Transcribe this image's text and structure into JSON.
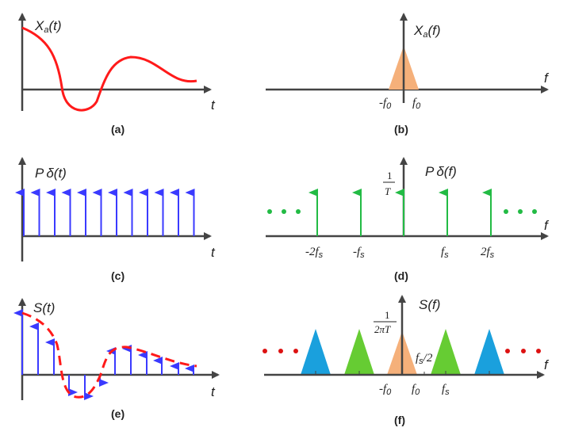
{
  "panels": {
    "a": {
      "caption": "(a)",
      "ylabel": "X",
      "ylabel_sub": "a",
      "ylabel_arg": "(t)",
      "xlabel": "t"
    },
    "b": {
      "caption": "(b)",
      "ylabel": "X",
      "ylabel_sub": "a",
      "ylabel_arg": "(f)",
      "xlabel": "f",
      "ticks": [
        "-f",
        "f"
      ],
      "tick_sub": "0"
    },
    "c": {
      "caption": "(c)",
      "ylabel": "P",
      "ylabel_sub": "δ",
      "ylabel_arg": "(t)",
      "xlabel": "t"
    },
    "d": {
      "caption": "(d)",
      "ylabel": "P",
      "ylabel_sub": "δ",
      "ylabel_arg": "(f)",
      "xlabel": "f",
      "amp_num": "1",
      "amp_den": "T",
      "ticks": [
        "-2f",
        "-f",
        "f",
        "2f"
      ],
      "tick_sub": "s"
    },
    "e": {
      "caption": "(e)",
      "ylabel": "S(t)",
      "xlabel": "t"
    },
    "f": {
      "caption": "(f)",
      "ylabel": "S(f)",
      "xlabel": "f",
      "amp_num": "1",
      "amp_den": "2πT",
      "half_label": "f",
      "half_sub": "s",
      "half_den": "/2",
      "ticks": [
        "-f",
        "f",
        "f"
      ],
      "tick_subs": [
        "0",
        "0",
        "s"
      ]
    }
  },
  "colors": {
    "axis": "#444444",
    "signal": "#ff1a1a",
    "impulse": "#3a3aff",
    "spectrum_impulse": "#22bb44",
    "base": "#f5b07a",
    "alias1": "#66cc33",
    "alias2": "#1aa0dd"
  }
}
